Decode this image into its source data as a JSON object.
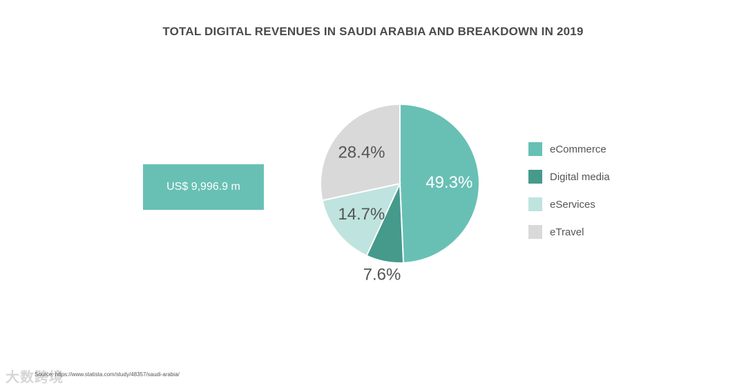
{
  "title": "TOTAL DIGITAL REVENUES IN SAUDI ARABIA AND BREAKDOWN IN 2019",
  "total": "US$ 9,996.9 m",
  "source": "Source: https://www.statista.com/study/48357/saudi-arabia/",
  "watermark": "大数跨境",
  "colors": {
    "ecommerce": "#68c0b5",
    "digital_media": "#459a8c",
    "eservices": "#bfe3de",
    "etravel": "#d9d9d9",
    "title": "#4a4a4a"
  },
  "chart_data": {
    "type": "pie",
    "title": "TOTAL DIGITAL REVENUES IN SAUDI ARABIA AND BREAKDOWN IN 2019",
    "categories": [
      "eCommerce",
      "Digital media",
      "eServices",
      "eTravel"
    ],
    "values": [
      49.3,
      7.6,
      14.7,
      28.4
    ],
    "labels": [
      "49.3%",
      "7.6%",
      "14.7%",
      "28.4%"
    ],
    "unit": "%",
    "legend_position": "right"
  }
}
